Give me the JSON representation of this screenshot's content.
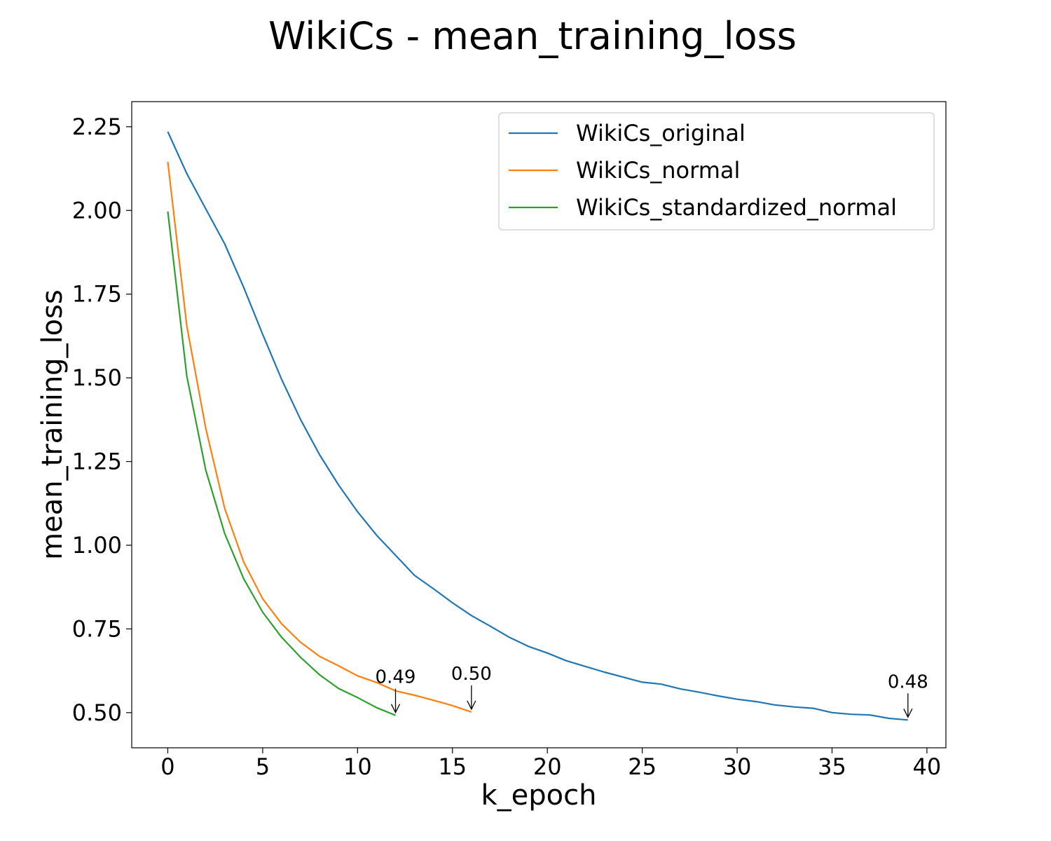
{
  "chart_data": {
    "type": "line",
    "title": "WikiCs - mean_training_loss",
    "xlabel": "k_epoch",
    "ylabel": "mean_training_loss",
    "xlim": [
      -1.9,
      41
    ],
    "ylim": [
      0.395,
      2.325
    ],
    "xticks": [
      0,
      5,
      10,
      15,
      20,
      25,
      30,
      35,
      40
    ],
    "xtick_labels": [
      "0",
      "5",
      "10",
      "15",
      "20",
      "25",
      "30",
      "35",
      "40"
    ],
    "yticks": [
      0.5,
      0.75,
      1.0,
      1.25,
      1.5,
      1.75,
      2.0,
      2.25
    ],
    "ytick_labels": [
      "0.50",
      "0.75",
      "1.00",
      "1.25",
      "1.50",
      "1.75",
      "2.00",
      "2.25"
    ],
    "grid": false,
    "legend_position": "top-right",
    "series": [
      {
        "name": "WikiCs_original",
        "color": "#1f77b4",
        "x": [
          0,
          1,
          2,
          3,
          4,
          5,
          6,
          7,
          8,
          9,
          10,
          11,
          12,
          13,
          14,
          15,
          16,
          17,
          18,
          19,
          20,
          21,
          22,
          23,
          24,
          25,
          26,
          27,
          28,
          29,
          30,
          31,
          32,
          33,
          34,
          35,
          36,
          37,
          38,
          39
        ],
        "values": [
          2.235,
          2.11,
          2.005,
          1.9,
          1.77,
          1.63,
          1.495,
          1.375,
          1.27,
          1.18,
          1.1,
          1.03,
          0.97,
          0.91,
          0.87,
          0.828,
          0.79,
          0.758,
          0.725,
          0.698,
          0.678,
          0.655,
          0.638,
          0.621,
          0.606,
          0.591,
          0.585,
          0.571,
          0.561,
          0.55,
          0.54,
          0.533,
          0.523,
          0.517,
          0.513,
          0.5,
          0.495,
          0.493,
          0.483,
          0.478
        ]
      },
      {
        "name": "WikiCs_normal",
        "color": "#ff7f0e",
        "x": [
          0,
          1,
          2,
          3,
          4,
          5,
          6,
          7,
          8,
          9,
          10,
          11,
          12,
          13,
          14,
          15,
          16
        ],
        "values": [
          2.145,
          1.655,
          1.35,
          1.11,
          0.95,
          0.84,
          0.765,
          0.71,
          0.668,
          0.64,
          0.61,
          0.59,
          0.565,
          0.552,
          0.537,
          0.521,
          0.502
        ]
      },
      {
        "name": "WikiCs_standardized_normal",
        "color": "#2ca02c",
        "x": [
          0,
          1,
          2,
          3,
          4,
          5,
          6,
          7,
          8,
          9,
          10,
          11,
          12
        ],
        "values": [
          1.997,
          1.505,
          1.225,
          1.035,
          0.9,
          0.8,
          0.725,
          0.665,
          0.613,
          0.572,
          0.545,
          0.515,
          0.492
        ]
      }
    ],
    "annotations": [
      {
        "text": "0.49",
        "series": "WikiCs_standardized_normal",
        "x": 12,
        "y": 0.492
      },
      {
        "text": "0.50",
        "series": "WikiCs_normal",
        "x": 16,
        "y": 0.502
      },
      {
        "text": "0.48",
        "series": "WikiCs_original",
        "x": 39,
        "y": 0.478
      }
    ]
  }
}
